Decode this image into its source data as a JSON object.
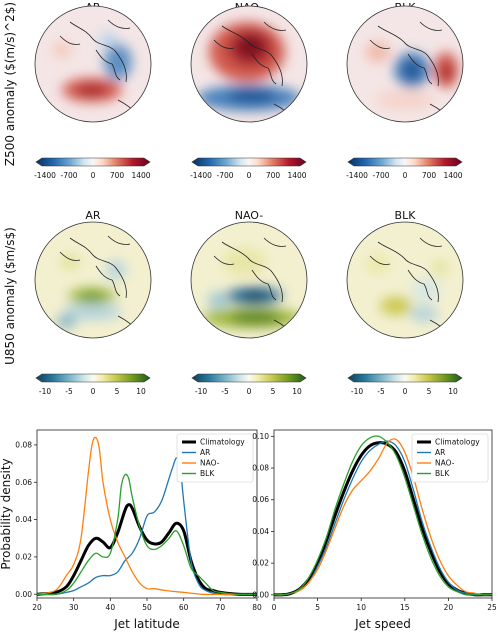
{
  "figure": {
    "map_titles": [
      "AR",
      "NAO-",
      "BLK"
    ],
    "row_labels": {
      "z500": "Z500 anomaly ($(m/s)^2$)",
      "u850": "U850 anomaly ($m/s$)"
    },
    "colorbars": {
      "z500": {
        "ticks": [
          "-1400",
          "-700",
          "0",
          "700",
          "1400"
        ],
        "colormap": "RdBu_r"
      },
      "u850": {
        "ticks": [
          "-10",
          "-5",
          "0",
          "5",
          "10"
        ],
        "colormap": "BrBG-like (blue-white-olive)"
      }
    },
    "map_patterns": [
      {
        "panel": "Z500 AR",
        "features": [
          {
            "sign": "negative",
            "region": "north-east Canada / Greenland"
          },
          {
            "sign": "positive",
            "region": "central North Pacific"
          }
        ]
      },
      {
        "panel": "Z500 NAO-",
        "features": [
          {
            "sign": "positive",
            "region": "Arctic / Greenland (strong)"
          },
          {
            "sign": "negative",
            "region": "mid-latitude band"
          }
        ]
      },
      {
        "panel": "Z500 BLK",
        "features": [
          {
            "sign": "negative",
            "region": "North America"
          },
          {
            "sign": "positive",
            "region": "Europe / Scandinavia"
          }
        ]
      },
      {
        "panel": "U850 AR",
        "features": [
          {
            "sign": "positive",
            "region": "mid-latitudes"
          }
        ]
      },
      {
        "panel": "U850 NAO-",
        "features": [
          {
            "sign": "negative",
            "region": "high latitudes (strong)"
          },
          {
            "sign": "positive",
            "region": "subtropical band"
          }
        ]
      },
      {
        "panel": "U850 BLK",
        "features": [
          {
            "sign": "positive",
            "region": "weak, scattered"
          }
        ]
      }
    ]
  },
  "colors": {
    "Climatology": "#000000",
    "AR": "#1f77b4",
    "NAO-": "#ff7f0e",
    "BLK": "#2ca02c"
  },
  "chart_data": [
    {
      "type": "line",
      "xlabel": "Jet latitude",
      "ylabel": "Probability density",
      "xlim": [
        20,
        80
      ],
      "ylim": [
        -0.002,
        0.088
      ],
      "xticks": [
        20,
        30,
        40,
        50,
        60,
        70,
        80
      ],
      "yticks": [
        0.0,
        0.02,
        0.04,
        0.06,
        0.08
      ],
      "ytick_labels": [
        "0.00",
        "0.02",
        "0.04",
        "0.06",
        "0.08"
      ],
      "legend": "top-right",
      "series": [
        {
          "name": "Climatology",
          "x": [
            20,
            25,
            28,
            30,
            32,
            34,
            36,
            38,
            40,
            42,
            44,
            45,
            46,
            48,
            50,
            52,
            54,
            56,
            58,
            60,
            62,
            64,
            66,
            68,
            70,
            75,
            80
          ],
          "y": [
            0,
            0.001,
            0.004,
            0.01,
            0.018,
            0.026,
            0.03,
            0.028,
            0.025,
            0.033,
            0.045,
            0.048,
            0.046,
            0.036,
            0.029,
            0.027,
            0.028,
            0.033,
            0.038,
            0.034,
            0.018,
            0.008,
            0.003,
            0.002,
            0.001,
            0,
            0
          ]
        },
        {
          "name": "AR",
          "x": [
            20,
            25,
            28,
            30,
            32,
            34,
            36,
            38,
            40,
            42,
            44,
            46,
            48,
            50,
            52,
            54,
            56,
            57,
            58,
            59,
            60,
            62,
            64,
            66,
            70,
            75,
            80
          ],
          "y": [
            0,
            0,
            0.001,
            0.002,
            0.004,
            0.006,
            0.009,
            0.01,
            0.01,
            0.012,
            0.018,
            0.022,
            0.03,
            0.042,
            0.044,
            0.05,
            0.062,
            0.068,
            0.073,
            0.07,
            0.05,
            0.018,
            0.006,
            0.002,
            0,
            0,
            0
          ]
        },
        {
          "name": "NAO-",
          "x": [
            20,
            25,
            28,
            30,
            32,
            34,
            35,
            36,
            37,
            38,
            40,
            42,
            44,
            46,
            48,
            50,
            52,
            55,
            60,
            65,
            70,
            75,
            80
          ],
          "y": [
            0,
            0.002,
            0.01,
            0.016,
            0.03,
            0.065,
            0.08,
            0.084,
            0.078,
            0.06,
            0.04,
            0.028,
            0.02,
            0.012,
            0.006,
            0.003,
            0.003,
            0.002,
            0.001,
            0,
            0,
            0,
            0
          ]
        },
        {
          "name": "BLK",
          "x": [
            20,
            25,
            28,
            30,
            32,
            34,
            36,
            38,
            40,
            42,
            43,
            44,
            45,
            46,
            48,
            50,
            52,
            54,
            56,
            58,
            60,
            62,
            64,
            66,
            68,
            70,
            75,
            80
          ],
          "y": [
            0,
            0,
            0.002,
            0.006,
            0.012,
            0.018,
            0.022,
            0.02,
            0.022,
            0.04,
            0.058,
            0.064,
            0.062,
            0.052,
            0.036,
            0.026,
            0.024,
            0.026,
            0.03,
            0.034,
            0.026,
            0.014,
            0.01,
            0.006,
            0.002,
            0.001,
            0,
            0
          ]
        }
      ]
    },
    {
      "type": "line",
      "xlabel": "Jet speed",
      "ylabel": "",
      "xlim": [
        0,
        25
      ],
      "ylim": [
        -0.002,
        0.104
      ],
      "xticks": [
        0,
        5,
        10,
        15,
        20,
        25
      ],
      "yticks": [
        0.0,
        0.02,
        0.04,
        0.06,
        0.08,
        0.1
      ],
      "ytick_labels": [
        "0.00",
        "0.02",
        "0.04",
        "0.06",
        "0.08",
        "0.10"
      ],
      "legend": "top-right",
      "series": [
        {
          "name": "Climatology",
          "x": [
            0,
            1,
            2,
            3,
            4,
            5,
            6,
            7,
            8,
            9,
            10,
            11,
            12,
            13,
            14,
            15,
            16,
            17,
            18,
            19,
            20,
            21,
            22,
            23,
            24,
            25
          ],
          "y": [
            0,
            0,
            0.001,
            0.004,
            0.01,
            0.02,
            0.034,
            0.05,
            0.065,
            0.078,
            0.088,
            0.094,
            0.096,
            0.095,
            0.09,
            0.078,
            0.06,
            0.042,
            0.027,
            0.015,
            0.007,
            0.003,
            0.001,
            0,
            0,
            0
          ]
        },
        {
          "name": "AR",
          "x": [
            0,
            1,
            2,
            3,
            4,
            5,
            6,
            7,
            8,
            9,
            10,
            11,
            12,
            13,
            14,
            15,
            16,
            17,
            18,
            19,
            20,
            21,
            22,
            23,
            24,
            25
          ],
          "y": [
            0,
            0,
            0.001,
            0.003,
            0.008,
            0.018,
            0.03,
            0.045,
            0.06,
            0.073,
            0.084,
            0.091,
            0.095,
            0.097,
            0.094,
            0.084,
            0.066,
            0.046,
            0.03,
            0.017,
            0.008,
            0.003,
            0.001,
            0,
            0,
            0
          ]
        },
        {
          "name": "NAO-",
          "x": [
            0,
            1,
            2,
            3,
            4,
            5,
            6,
            7,
            8,
            9,
            10,
            11,
            12,
            13,
            14,
            15,
            16,
            17,
            18,
            19,
            20,
            21,
            22,
            23,
            24,
            25
          ],
          "y": [
            0,
            0,
            0.001,
            0.003,
            0.008,
            0.016,
            0.028,
            0.042,
            0.056,
            0.066,
            0.072,
            0.078,
            0.086,
            0.096,
            0.098,
            0.09,
            0.074,
            0.054,
            0.036,
            0.022,
            0.012,
            0.006,
            0.002,
            0.001,
            0,
            0
          ]
        },
        {
          "name": "BLK",
          "x": [
            0,
            1,
            2,
            3,
            4,
            5,
            6,
            7,
            8,
            9,
            10,
            11,
            12,
            13,
            14,
            15,
            16,
            17,
            18,
            19,
            20,
            21,
            22,
            23,
            24,
            25
          ],
          "y": [
            0,
            0,
            0.001,
            0.004,
            0.011,
            0.022,
            0.036,
            0.054,
            0.07,
            0.084,
            0.094,
            0.099,
            0.1,
            0.096,
            0.088,
            0.074,
            0.056,
            0.038,
            0.023,
            0.012,
            0.005,
            0.002,
            0,
            0,
            0,
            0
          ]
        }
      ]
    }
  ]
}
